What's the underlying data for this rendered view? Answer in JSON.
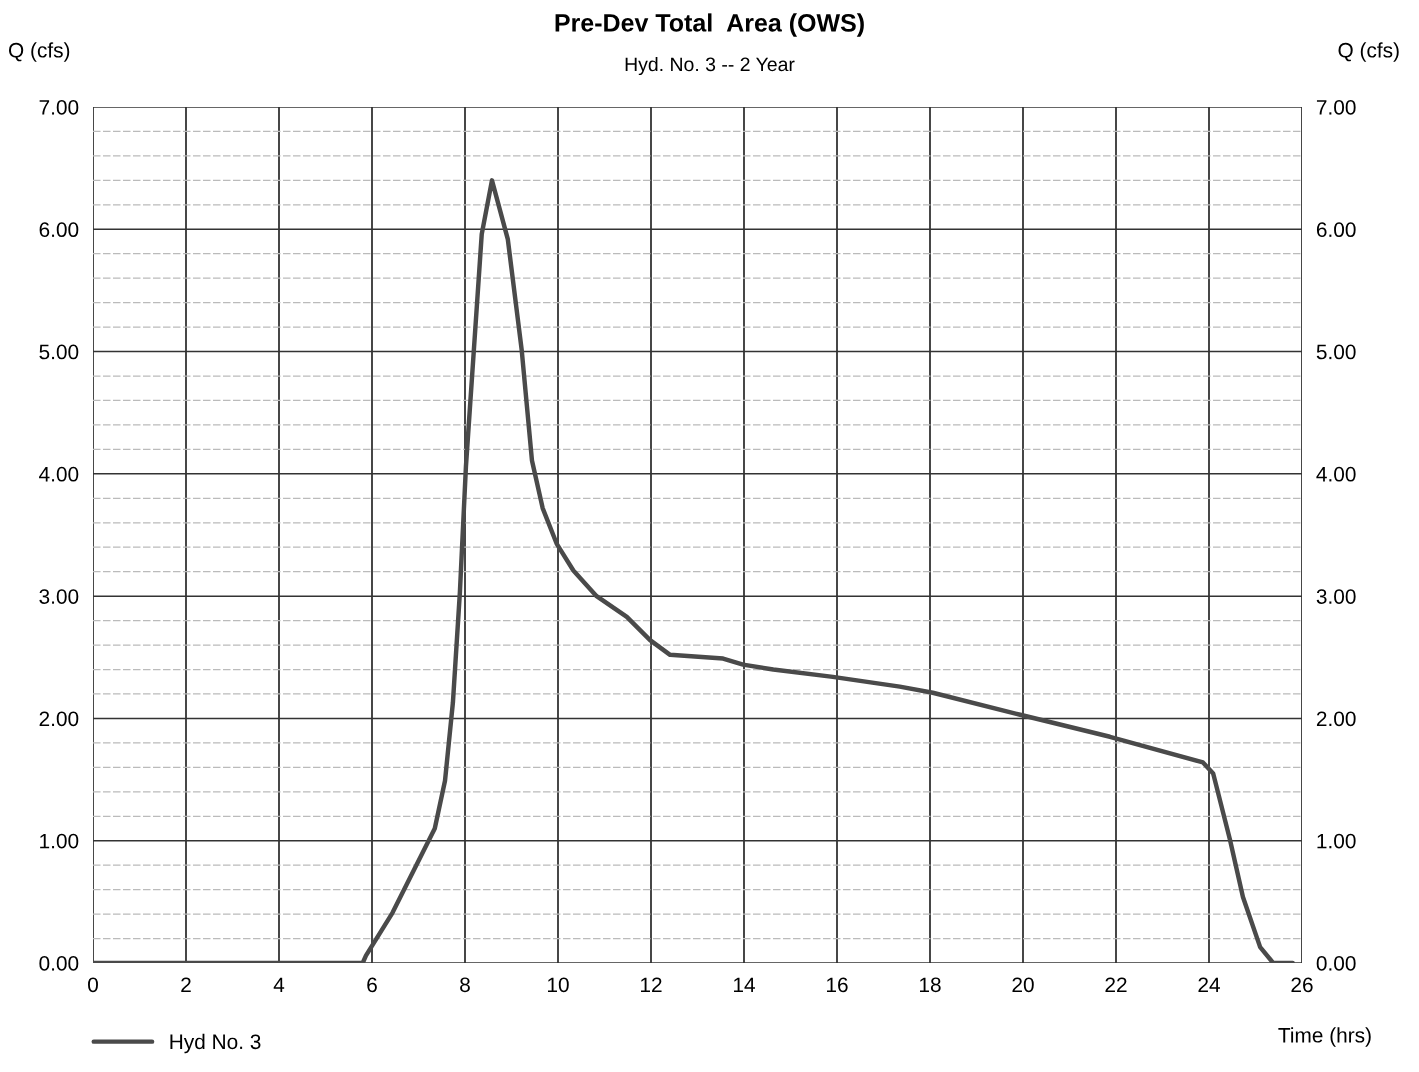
{
  "chart_data": {
    "type": "line",
    "title": "Pre-Dev Total  Area (OWS)",
    "subtitle": "Hyd. No. 3 -- 2 Year",
    "xlabel": "Time (hrs)",
    "ylabel": "Q (cfs)",
    "y2label": "Q (cfs)",
    "series": [
      {
        "name": "Hyd No. 3",
        "color": "#4a4a4a",
        "x": [
          0,
          5.8,
          5.87,
          6.44,
          7.35,
          7.57,
          7.74,
          7.89,
          8.02,
          8.19,
          8.36,
          8.58,
          8.92,
          9.22,
          9.44,
          9.67,
          9.97,
          10.33,
          10.83,
          11.48,
          11.98,
          12.41,
          13.55,
          13.98,
          14.63,
          15.91,
          17.35,
          18.06,
          19.94,
          21.87,
          23.87,
          24.09,
          24.45,
          24.73,
          25.1,
          25.38,
          25.8
        ],
        "values": [
          0,
          0,
          0.06,
          0.41,
          1.1,
          1.49,
          2.13,
          3.03,
          4.06,
          5.01,
          5.96,
          6.4,
          5.92,
          5.01,
          4.11,
          3.72,
          3.43,
          3.21,
          3.0,
          2.83,
          2.64,
          2.52,
          2.49,
          2.44,
          2.4,
          2.34,
          2.26,
          2.21,
          2.03,
          1.85,
          1.64,
          1.55,
          1.01,
          0.54,
          0.13,
          0,
          0
        ]
      }
    ],
    "xlim": [
      0,
      26
    ],
    "xticks": [
      0,
      2,
      4,
      6,
      8,
      10,
      12,
      14,
      16,
      18,
      20,
      22,
      24,
      26
    ],
    "ylim": [
      0,
      7
    ],
    "yticks": [
      {
        "value": 0,
        "label": "0.00"
      },
      {
        "value": 0.2,
        "label": null
      },
      {
        "value": 0.4,
        "label": null
      },
      {
        "value": 0.6,
        "label": null
      },
      {
        "value": 0.8,
        "label": null
      },
      {
        "value": 1,
        "label": "1.00"
      },
      {
        "value": 1.2,
        "label": null
      },
      {
        "value": 1.4,
        "label": null
      },
      {
        "value": 1.6,
        "label": null
      },
      {
        "value": 1.8,
        "label": null
      },
      {
        "value": 2,
        "label": "2.00"
      },
      {
        "value": 2.2,
        "label": null
      },
      {
        "value": 2.4,
        "label": null
      },
      {
        "value": 2.6,
        "label": null
      },
      {
        "value": 2.8,
        "label": null
      },
      {
        "value": 3,
        "label": "3.00"
      },
      {
        "value": 3.2,
        "label": null
      },
      {
        "value": 3.4,
        "label": null
      },
      {
        "value": 3.6,
        "label": null
      },
      {
        "value": 3.8,
        "label": null
      },
      {
        "value": 4,
        "label": "4.00"
      },
      {
        "value": 4.2,
        "label": null
      },
      {
        "value": 4.4,
        "label": null
      },
      {
        "value": 4.6,
        "label": null
      },
      {
        "value": 4.8,
        "label": null
      },
      {
        "value": 5,
        "label": "5.00"
      },
      {
        "value": 5.2,
        "label": null
      },
      {
        "value": 5.4,
        "label": null
      },
      {
        "value": 5.6,
        "label": null
      },
      {
        "value": 5.8,
        "label": null
      },
      {
        "value": 6,
        "label": "6.00"
      },
      {
        "value": 6.2,
        "label": null
      },
      {
        "value": 6.4,
        "label": null
      },
      {
        "value": 6.6,
        "label": null
      },
      {
        "value": 6.8,
        "label": null
      },
      {
        "value": 7,
        "label": "7.00"
      }
    ],
    "y2lim": [
      0,
      7
    ],
    "y2ticks": [
      {
        "value": 0,
        "label": "0.00"
      },
      {
        "value": 1,
        "label": "1.00"
      },
      {
        "value": 2,
        "label": "2.00"
      },
      {
        "value": 3,
        "label": "3.00"
      },
      {
        "value": 4,
        "label": "4.00"
      },
      {
        "value": 5,
        "label": "5.00"
      },
      {
        "value": 6,
        "label": "6.00"
      },
      {
        "value": 7,
        "label": "7.00"
      }
    ],
    "grid": true,
    "legend": "bottom left",
    "marker": "none",
    "line_style": "solid"
  }
}
